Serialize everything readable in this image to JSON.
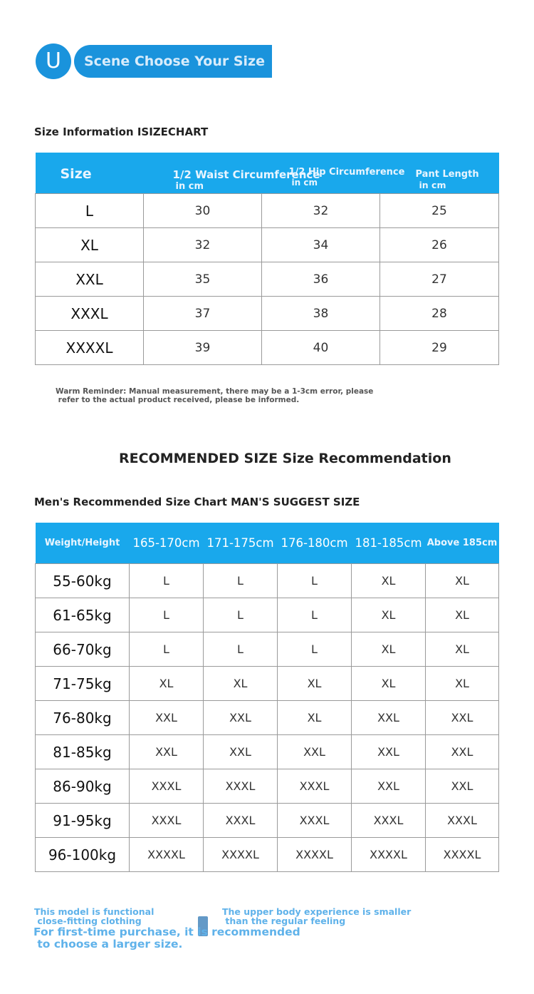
{
  "header": {
    "badge_letter": "U",
    "badge_text": "Scene Choose Your Size"
  },
  "size_info": {
    "title": "Size Information ISIZECHART",
    "headers": {
      "size": "Size",
      "waist": "1/2 Waist Circumference",
      "waist_unit": "in cm",
      "hip": "1/2 Hip Circumference",
      "hip_unit": "in cm",
      "length": "Pant Length",
      "length_unit": "in cm"
    },
    "rows": [
      {
        "size": "L",
        "waist": "30",
        "hip": "32",
        "length": "25"
      },
      {
        "size": "XL",
        "waist": "32",
        "hip": "34",
        "length": "26"
      },
      {
        "size": "XXL",
        "waist": "35",
        "hip": "36",
        "length": "27"
      },
      {
        "size": "XXXL",
        "waist": "37",
        "hip": "38",
        "length": "28"
      },
      {
        "size": "XXXXL",
        "waist": "39",
        "hip": "40",
        "length": "29"
      }
    ],
    "reminder": "Warm Reminder: Manual measurement, there may be a 1-3cm error, please\n refer to the actual product received, please be informed."
  },
  "recommendation": {
    "title": "RECOMMENDED SIZE Size Recommendation",
    "chart_title": "Men's Recommended Size Chart MAN'S SUGGEST SIZE",
    "corner": "Weight/Height",
    "heights": [
      "165-170cm",
      "171-175cm",
      "176-180cm",
      "181-185cm",
      "Above 185cm"
    ],
    "rows": [
      {
        "weight": "55-60kg",
        "sizes": [
          "L",
          "L",
          "L",
          "XL",
          "XL"
        ]
      },
      {
        "weight": "61-65kg",
        "sizes": [
          "L",
          "L",
          "L",
          "XL",
          "XL"
        ]
      },
      {
        "weight": "66-70kg",
        "sizes": [
          "L",
          "L",
          "L",
          "XL",
          "XL"
        ]
      },
      {
        "weight": "71-75kg",
        "sizes": [
          "XL",
          "XL",
          "XL",
          "XL",
          "XL"
        ]
      },
      {
        "weight": "76-80kg",
        "sizes": [
          "XXL",
          "XXL",
          "XL",
          "XXL",
          "XXL"
        ]
      },
      {
        "weight": "81-85kg",
        "sizes": [
          "XXL",
          "XXL",
          "XXL",
          "XXL",
          "XXL"
        ]
      },
      {
        "weight": "86-90kg",
        "sizes": [
          "XXXL",
          "XXXL",
          "XXXL",
          "XXL",
          "XXL"
        ]
      },
      {
        "weight": "91-95kg",
        "sizes": [
          "XXXL",
          "XXXL",
          "XXXL",
          "XXXL",
          "XXXL"
        ]
      },
      {
        "weight": "96-100kg",
        "sizes": [
          "XXXXL",
          "XXXXL",
          "XXXXL",
          "XXXXL",
          "XXXXL"
        ]
      }
    ]
  },
  "notes": {
    "functional": "This model is functional\n close-fitting clothing",
    "upper_body": "The upper body experience is smaller\n than the regular feeling",
    "first_time": "For first-time purchase, it is recommended\n to choose a larger size."
  },
  "colors": {
    "accent_blue": "#19a8ec",
    "badge_blue": "#1a93dc",
    "note_blue": "#5fb2ea"
  }
}
